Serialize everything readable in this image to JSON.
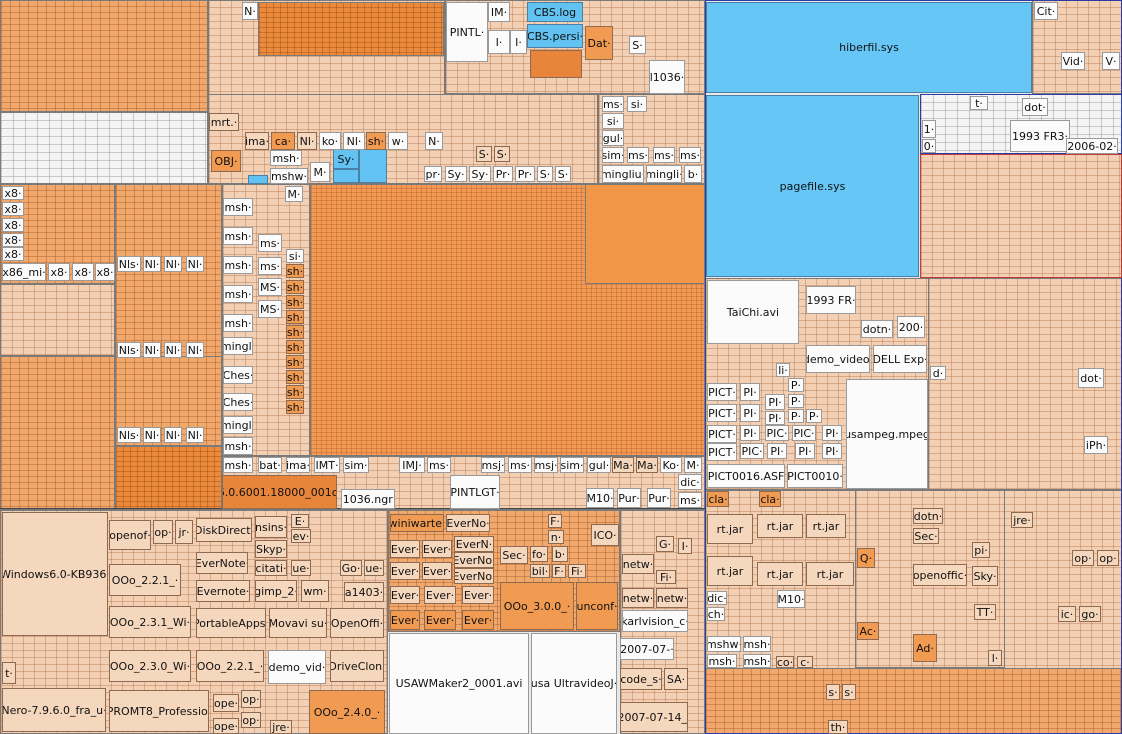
{
  "app": {
    "view": "treemap",
    "colors": {
      "system_files": "#62c3f2",
      "large_file": "#f19a52",
      "file": "#f5d7bd",
      "folder_texture": "#f0a86c",
      "white_file": "#fbfbfb"
    }
  },
  "tiles": {
    "n1": "N·",
    "pintl": "PINTL·",
    "im": "IM·",
    "cbslog": "CBS.log",
    "cbspersi": "CBS.persi·",
    "i1": "I·",
    "i2": "I·",
    "dat": "Dat·",
    "s_top": "S·",
    "l1036": "l1036·",
    "mrt": "mrt.·",
    "ima": "ima·",
    "ca": "ca·",
    "nl1": "Nl·",
    "ko": "ko·",
    "nl2": "Nl·",
    "sh1": "sh·",
    "w1": "w·",
    "n2": "N·",
    "ms1": "ms·",
    "si1": "si·",
    "si2": "si·",
    "gul": "gul·",
    "sim": "sim·",
    "ms2": "ms·",
    "ms3": "ms·",
    "ms4": "ms·",
    "obj": "OBJ·",
    "msh1": "msh·",
    "m1": "M·",
    "sy1": "Sy·",
    "mshw": "mshw·",
    "s1": "S·",
    "s2": "S·",
    "pr1": "pr·",
    "sy2": "Sy·",
    "sy3": "Sy·",
    "pr2": "Pr·",
    "pr3": "Pr·",
    "s3": "S·",
    "s4": "S·",
    "mingliu": "mingliu·",
    "mingli": "mingli·",
    "b1": "b·",
    "x8a": "x8·",
    "x8b": "x8·",
    "x8c": "x8·",
    "x8d": "x8·",
    "x8e": "x8·",
    "x86mi": "x86_mi·",
    "x8f": "x8·",
    "x8g": "x8·",
    "x8h": "x8·",
    "m2": "M·",
    "msh2": "msh·",
    "msh3": "msh·",
    "ms5": "ms·",
    "msh4": "msh·",
    "ms6": "ms·",
    "msh5": "msh·",
    "ms7": "MS·",
    "msh6": "msh·",
    "ms8": "MS·",
    "mingl1": "mingl·",
    "si3": "si·",
    "sh2": "sh·",
    "sh3": "sh·",
    "sh4": "sh·",
    "sh5": "sh·",
    "sh6": "sh·",
    "sh7": "sh·",
    "sh8": "sh·",
    "sh9": "sh·",
    "sh10": "sh·",
    "sh11": "sh·",
    "ches1": "Ches·",
    "ches2": "Ches·",
    "mingl2": "mingl·",
    "nls1": "Nls·",
    "nl3": "Nl·",
    "nl4": "Nl·",
    "nl5": "Nl·",
    "nls2": "Nls·",
    "nl6": "Nl·",
    "nl7": "Nl·",
    "nl8": "Nl·",
    "nls3": "Nls·",
    "nl9": "Nl·",
    "nl10": "Nl·",
    "nl11": "Nl·",
    "msh7": "msh·",
    "msh8": "msh·",
    "bat": "bat·",
    "ima2": "ima·",
    "imt": "IMT·",
    "sim2": "sim·",
    "imj": "IMJ·",
    "ms9": "ms·",
    "msj1": "msj·",
    "ms10": "ms·",
    "msj2": "msj·",
    "sim3": "sim·",
    "gul2": "gul·",
    "ma1": "Ma·",
    "ma2": "Ma·",
    "ko2": "Ko·",
    "m3": "M·",
    "ver6": "6.0.6001.18000_001c·",
    "l1036ngr": "l1036.ngr·",
    "pintlgt": "PINTLGT·",
    "m10a": "M10·",
    "pur1": "Pur·",
    "pur2": "Pur·",
    "dic1": "dic·",
    "ms11": "ms·",
    "hiberfil": "hiberfil.sys",
    "pagefile": "pagefile.sys",
    "cit": "Cit·",
    "vid": "Vid·",
    "v": "V·",
    "t1": "t·",
    "dot1": "dot·",
    "one": "1·",
    "zero": "0·",
    "fr1993a": "1993 FR3·",
    "d2006": "2006-02·",
    "taichi": "TaiChi.avi",
    "fr1993b": "1993 FR·",
    "dotn1": "dotn·",
    "n200": "200·",
    "demovideo": "demo_video·",
    "dellexp": "DELL Exp·",
    "li": "li·",
    "d1": "d·",
    "dot2": "dot·",
    "pict1": "PICT·",
    "pi1": "PI·",
    "p1": "P·",
    "pi2": "PI·",
    "p2": "P·",
    "pict2": "PICT·",
    "pi3": "PI·",
    "pi4": "PI·",
    "p3": "P·",
    "p4": "P·",
    "pict3": "PICT·",
    "pi5": "PI·",
    "pic1": "PIC·",
    "pic2": "PIC·",
    "pi6": "PI·",
    "pict4": "PICT·",
    "pic3": "PIC·",
    "pi7": "PI·",
    "pi8": "PI·",
    "pi9": "PI·",
    "usampeg": "usampeg.mpeg",
    "iph": "iPh·",
    "pict0016": "PICT0016.ASF",
    "pict0010": "PICT0010·",
    "win6kb": "Windows6.0-KB936·",
    "openof1": "openof·",
    "op1": "op·",
    "jr1": "jr·",
    "diskdirect": "DiskDirect·",
    "nsins": "nsins·",
    "e1": "E·",
    "ev1": "ev·",
    "ooo221a": "OOo_2.2.1_·",
    "evernote1": "EverNote·",
    "skyp": "Skyp·",
    "citati": "citati·",
    "ue1": "ue·",
    "evernote2": "Evernote·",
    "gimp2": "gimp_2·",
    "wm": "wm·",
    "go1": "Go·",
    "ue2": "ue·",
    "a1403": "a1403·",
    "ooo231": "OOo_2.3.1_Wi·",
    "portableapps": "PortableApps·",
    "movavi": "Movavi su·",
    "openoffi1": "OpenOffi·",
    "t2": "t·",
    "ooo230": "OOo_2.3.0_Wi·",
    "ooo221b": "OOo_2.2.1_·",
    "demovid": "demo_vid·",
    "driveclon": "DriveClon·",
    "nero": "Nero-7.9.6.0_fra_u·",
    "promt8": "PROMT8_Professio·",
    "ope1": "ope·",
    "op2": "op·",
    "ope2": "ope·",
    "op3": "op·",
    "jre1": "jre·",
    "ooo240": "OOo_2.4.0_·",
    "winiwarte": "winiwarte·",
    "everno1": "EverNo·",
    "f1": "F·",
    "ever1": "Ever·",
    "ever2": "Ever·",
    "evern1": "EverN·",
    "n3": "n·",
    "ico": "ICO·",
    "everno2": "EverNo·",
    "ever3": "Ever·",
    "ever4": "Ever·",
    "everno3": "EverNo·",
    "sec1": "Sec·",
    "fo": "fo·",
    "b2": "b·",
    "bil": "bil·",
    "f2": "F·",
    "fi1": "Fi·",
    "ever5": "Ever·",
    "ever6": "Ever·",
    "ever7": "Ever·",
    "ooo300": "OOo_3.0.0_·",
    "unconf": "unconf·",
    "ever8": "Ever·",
    "ever9": "Ever·",
    "ever10": "Ever·",
    "netw1": "netw·",
    "g1": "G·",
    "i3": "I·",
    "fi2": "Fi·",
    "netw2": "netw·",
    "netw3": "netw·",
    "karlvision": "karlvision_c·",
    "usaw": "USAWMaker2_0001.avi",
    "usaultra": "usa UltravideoJ·",
    "d2007a": "2007-07-·",
    "codes": "code_s·",
    "sa": "SA·",
    "d2007b": "2007-07-14_·",
    "cla1": "cla·",
    "cla2": "cla·",
    "rtjar1": "rt.jar",
    "rtjar2": "rt.jar",
    "rtjar3": "rt.jar",
    "rtjar4": "rt.jar",
    "rtjar5": "rt.jar",
    "rtjar6": "rt.jar",
    "dotn2": "dotn·",
    "sec2": "Sec·",
    "jre2": "jre·",
    "q1": "Q·",
    "pi10": "pi·",
    "openoffic": "openoffic·",
    "sky": "Sky·",
    "op4": "op·",
    "op5": "op·",
    "dic2": "dic·",
    "ch": "ch·",
    "m10b": "M10·",
    "tt": "TT·",
    "ic": "ic·",
    "go2": "go·",
    "mshw2": "mshw·",
    "msh9": "msh·",
    "ac": "Ac·",
    "ad": "Ad·",
    "msh10": "msh·",
    "msh11": "msh·",
    "co": "co·",
    "c1": "c·",
    "l1": "l·",
    "s5": "s·",
    "s6": "s·",
    "th": "th·"
  }
}
